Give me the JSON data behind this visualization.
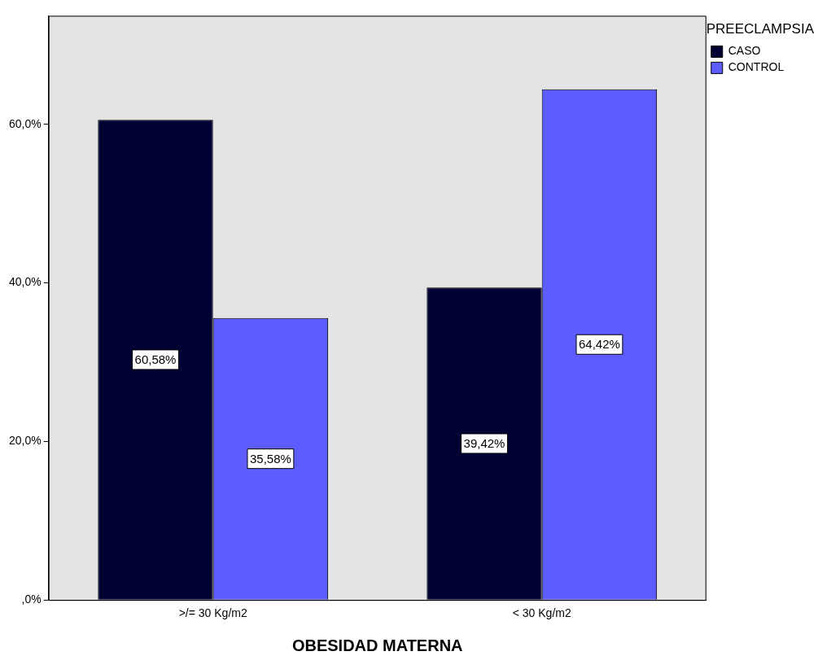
{
  "chart_data": {
    "type": "bar",
    "xlabel": "OBESIDAD MATERNA",
    "legend_title": "PREECLAMPSIA",
    "legend": "top right",
    "grid": false,
    "categories": [
      ">/= 30 Kg/m2",
      "< 30 Kg/m2"
    ],
    "series": [
      {
        "name": "CASO",
        "color": "#000033",
        "values": [
          60.58,
          39.42
        ],
        "value_labels": [
          "60,58%",
          "39,42%"
        ]
      },
      {
        "name": "CONTROL",
        "color": "#5c5cff",
        "values": [
          35.58,
          64.42
        ],
        "value_labels": [
          "35,58%",
          "64,42%"
        ]
      }
    ],
    "ylim": [
      0,
      73.7
    ],
    "yticks": [
      {
        "value": 0,
        "label": ",0%"
      },
      {
        "value": 20,
        "label": "20,0%"
      },
      {
        "value": 40,
        "label": "40,0%"
      },
      {
        "value": 60,
        "label": "60,0%"
      }
    ]
  }
}
